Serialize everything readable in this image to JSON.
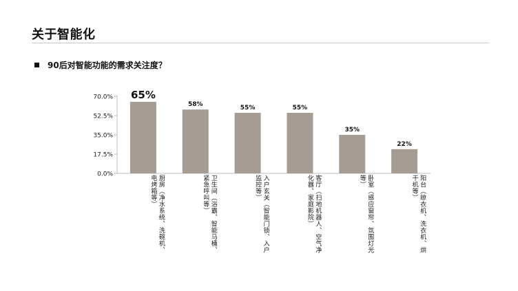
{
  "header": {
    "title": "关于智能化"
  },
  "question": {
    "text": "90后对智能功能的需求关注度？"
  },
  "chart_data": {
    "type": "bar",
    "categories": [
      "厨房（净水系统、洗碗机、电烤箱等）",
      "卫生间（浴霸、智能马桶、紧急呼叫等）",
      "入户玄关（智能门锁、入户监控等）",
      "客厅（扫地机器人、空气净化器、家庭影院）",
      "卧室（感应窗帘、氛围灯光等）",
      "阳台（晾衣机、洗衣机、烘干机等）"
    ],
    "values": [
      65,
      58,
      55,
      55,
      35,
      22
    ],
    "value_labels": [
      "65%",
      "58%",
      "55%",
      "55%",
      "35%",
      "22%"
    ],
    "yticks": [
      "70.0%",
      "52.5%",
      "35.0%",
      "17.5%",
      "0.0%"
    ],
    "ylim": [
      0,
      70
    ],
    "bar_color": "#a59d94",
    "axis_color": "#bdbdbd",
    "grid": false,
    "legend": "none"
  }
}
